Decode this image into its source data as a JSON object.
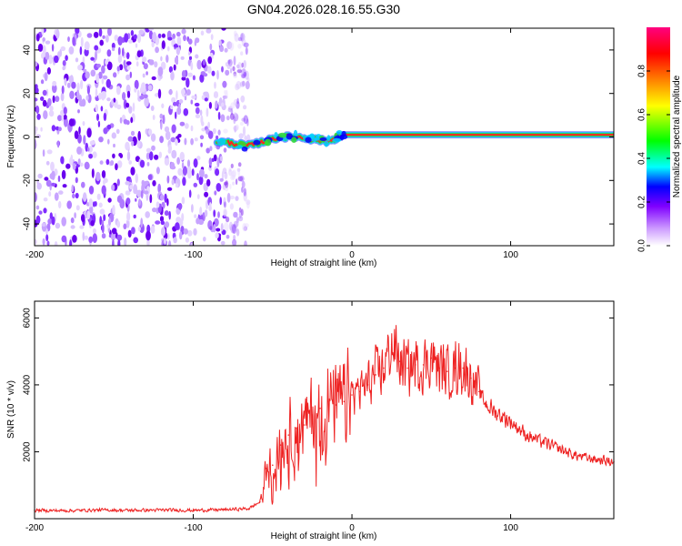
{
  "figure": {
    "title": "GN04.2026.028.16.55.G30"
  },
  "chart_data": [
    {
      "type": "heatmap",
      "name": "spectrogram",
      "xlabel": "Height of straight line (km)",
      "ylabel": "Frequency (Hz)",
      "xlim": [
        -200,
        165
      ],
      "ylim": [
        -50,
        50
      ],
      "xticks": [
        -200,
        -100,
        0,
        100
      ],
      "xtick_labels": [
        "-200",
        "-100",
        "0",
        "100"
      ],
      "yticks": [
        -40,
        -20,
        0,
        20,
        40
      ],
      "ytick_labels": [
        "-40",
        "-20",
        "0",
        "20",
        "40"
      ],
      "noise_region_x": [
        -200,
        -65
      ],
      "signal_line": {
        "x_start": -85,
        "x_end": 165,
        "points": [
          [
            -85,
            -2
          ],
          [
            -75,
            -3
          ],
          [
            -65,
            -4
          ],
          [
            -55,
            -2
          ],
          [
            -45,
            0
          ],
          [
            -35,
            0
          ],
          [
            -25,
            -1
          ],
          [
            -15,
            -2
          ],
          [
            -5,
            1
          ],
          [
            10,
            1
          ],
          [
            60,
            1
          ],
          [
            120,
            1
          ],
          [
            165,
            1
          ]
        ]
      },
      "colorbar": {
        "label": "Normalized spectral amplitude",
        "range": [
          0,
          1
        ],
        "ticks": [
          0.0,
          0.2,
          0.4,
          0.6,
          0.8
        ],
        "tick_labels": [
          "0.0",
          "0.2",
          "0.4",
          "0.6",
          "0.8"
        ],
        "colors": [
          "#ffffff",
          "#cc99ff",
          "#7f00ff",
          "#0000ff",
          "#00ffff",
          "#00ff00",
          "#ffff00",
          "#ff8000",
          "#ff0000",
          "#ff0080"
        ]
      }
    },
    {
      "type": "line",
      "name": "snr",
      "xlabel": "Height of straight line (km)",
      "ylabel": "SNR (10 * v/v)",
      "xlim": [
        -200,
        165
      ],
      "ylim": [
        0,
        6500
      ],
      "xticks": [
        -200,
        -100,
        0,
        100
      ],
      "xtick_labels": [
        "-200",
        "-100",
        "0",
        "100"
      ],
      "yticks": [
        2000,
        4000,
        6000
      ],
      "ytick_labels": [
        "2000",
        "4000",
        "6000"
      ],
      "color": "#ee2222",
      "series": [
        {
          "name": "SNR",
          "x": [
            -200,
            -180,
            -160,
            -140,
            -120,
            -100,
            -80,
            -65,
            -58,
            -54,
            -50,
            -45,
            -40,
            -35,
            -30,
            -25,
            -20,
            -15,
            -10,
            -5,
            0,
            5,
            10,
            15,
            20,
            25,
            30,
            35,
            40,
            45,
            50,
            55,
            60,
            65,
            70,
            75,
            80,
            85,
            90,
            100,
            110,
            120,
            130,
            140,
            150,
            165
          ],
          "values": [
            250,
            240,
            260,
            250,
            260,
            250,
            270,
            300,
            500,
            1500,
            1600,
            2200,
            2500,
            2700,
            2800,
            3100,
            3300,
            3500,
            3400,
            3500,
            3700,
            3800,
            4000,
            4300,
            4500,
            5200,
            4700,
            4500,
            4600,
            4600,
            4800,
            4500,
            4400,
            4500,
            4500,
            4200,
            3800,
            3400,
            3200,
            2900,
            2500,
            2300,
            2100,
            1900,
            1800,
            1700
          ]
        }
      ]
    }
  ]
}
